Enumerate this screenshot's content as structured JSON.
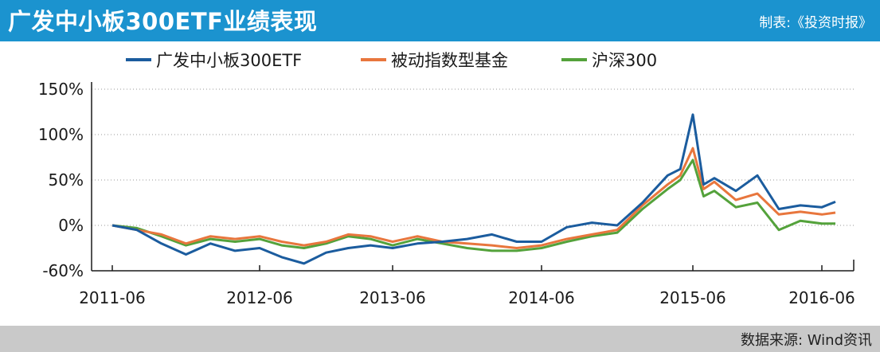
{
  "header": {
    "title": "广发中小板300ETF业绩表现",
    "producer": "制表:《投资时报》"
  },
  "footer": {
    "source": "数据来源: Wind资讯"
  },
  "colors": {
    "header_bg": "#1b93cf",
    "footer_bg": "#c9c9c9",
    "series_etf": "#1b5c9e",
    "series_passive": "#e8763d",
    "series_csi300": "#54a23b"
  },
  "chart_data": {
    "type": "line",
    "xlabel": "",
    "ylabel": "",
    "x_ticks": [
      "2011-06",
      "2012-06",
      "2013-06",
      "2014-06",
      "2015-06",
      "2016-06"
    ],
    "y_ticks": [
      "150%",
      "100%",
      "50%",
      "0%",
      "-60%"
    ],
    "ylim": [
      -50,
      150
    ],
    "grid": "horizontal dotted",
    "legend_position": "top",
    "series": [
      {
        "name": "广发中小板300ETF",
        "color": "#1b5c9e",
        "x": [
          "2011-06",
          "2011-08",
          "2011-10",
          "2011-12",
          "2012-02",
          "2012-04",
          "2012-06",
          "2012-08",
          "2012-10",
          "2012-12",
          "2013-02",
          "2013-04",
          "2013-06",
          "2013-08",
          "2013-10",
          "2013-12",
          "2014-02",
          "2014-04",
          "2014-06",
          "2014-08",
          "2014-10",
          "2014-12",
          "2015-02",
          "2015-04",
          "2015-05",
          "2015-06",
          "2015-07",
          "2015-08",
          "2015-10",
          "2015-12",
          "2016-02",
          "2016-04",
          "2016-06",
          "2016-07"
        ],
        "values": [
          0,
          -5,
          -20,
          -32,
          -20,
          -28,
          -25,
          -35,
          -42,
          -30,
          -25,
          -22,
          -25,
          -20,
          -18,
          -15,
          -10,
          -18,
          -18,
          -2,
          3,
          0,
          25,
          55,
          62,
          122,
          45,
          52,
          38,
          55,
          18,
          22,
          20,
          26
        ]
      },
      {
        "name": "被动指数型基金",
        "color": "#e8763d",
        "x": [
          "2011-06",
          "2011-08",
          "2011-10",
          "2011-12",
          "2012-02",
          "2012-04",
          "2012-06",
          "2012-08",
          "2012-10",
          "2012-12",
          "2013-02",
          "2013-04",
          "2013-06",
          "2013-08",
          "2013-10",
          "2013-12",
          "2014-02",
          "2014-04",
          "2014-06",
          "2014-08",
          "2014-10",
          "2014-12",
          "2015-02",
          "2015-04",
          "2015-05",
          "2015-06",
          "2015-07",
          "2015-08",
          "2015-10",
          "2015-12",
          "2016-02",
          "2016-04",
          "2016-06",
          "2016-07"
        ],
        "values": [
          0,
          -5,
          -10,
          -20,
          -12,
          -15,
          -12,
          -18,
          -22,
          -18,
          -10,
          -12,
          -18,
          -12,
          -18,
          -20,
          -22,
          -25,
          -22,
          -15,
          -10,
          -5,
          22,
          45,
          55,
          85,
          40,
          48,
          28,
          35,
          12,
          15,
          12,
          14
        ]
      },
      {
        "name": "沪深300",
        "color": "#54a23b",
        "x": [
          "2011-06",
          "2011-08",
          "2011-10",
          "2011-12",
          "2012-02",
          "2012-04",
          "2012-06",
          "2012-08",
          "2012-10",
          "2012-12",
          "2013-02",
          "2013-04",
          "2013-06",
          "2013-08",
          "2013-10",
          "2013-12",
          "2014-02",
          "2014-04",
          "2014-06",
          "2014-08",
          "2014-10",
          "2014-12",
          "2015-02",
          "2015-04",
          "2015-05",
          "2015-06",
          "2015-07",
          "2015-08",
          "2015-10",
          "2015-12",
          "2016-02",
          "2016-04",
          "2016-06",
          "2016-07"
        ],
        "values": [
          0,
          -3,
          -12,
          -22,
          -15,
          -18,
          -15,
          -22,
          -25,
          -20,
          -12,
          -15,
          -22,
          -15,
          -20,
          -25,
          -28,
          -28,
          -25,
          -18,
          -12,
          -8,
          18,
          40,
          50,
          72,
          32,
          38,
          20,
          25,
          -5,
          5,
          2,
          2
        ]
      }
    ]
  }
}
